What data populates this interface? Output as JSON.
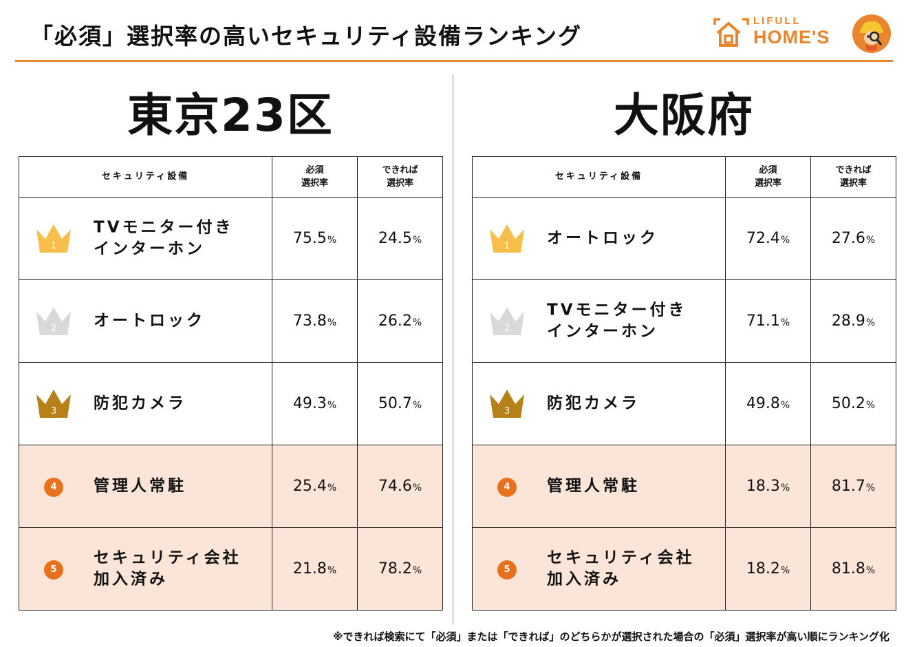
{
  "title": "「必須」選択率の高いセキュリティ設備ランキング",
  "logo": {
    "line1": "LIFULL",
    "line2": "HOME'S"
  },
  "footnote": "※できれば検索にて「必須」または「できれば」のどちらかが選択された場合の「必須」選択率が高い順にランキング化",
  "colors": {
    "accent": "#e8852d",
    "gold": "#f7bf4a",
    "silver": "#d9d9d9",
    "bronze": "#b78119",
    "rank_circle": "#e8711d",
    "highlight_row": "#fbe5d8"
  },
  "chart_data": [
    {
      "type": "table",
      "title": "東京23区",
      "headers": {
        "facility": "セキュリティ設備",
        "required": "必須\n選択率",
        "preferred": "できれば\n選択率"
      },
      "unit": "%",
      "rows": [
        {
          "rank": 1,
          "rank_label": "1",
          "facility": "TVモニター付き\nインターホン",
          "required": "75.5",
          "preferred": "24.5",
          "style": "crown-gold"
        },
        {
          "rank": 2,
          "rank_label": "2",
          "facility": "オートロック",
          "required": "73.8",
          "preferred": "26.2",
          "style": "crown-silver"
        },
        {
          "rank": 3,
          "rank_label": "3",
          "facility": "防犯カメラ",
          "required": "49.3",
          "preferred": "50.7",
          "style": "crown-bronze"
        },
        {
          "rank": 4,
          "rank_label": "4",
          "facility": "管理人常駐",
          "required": "25.4",
          "preferred": "74.6",
          "style": "circle"
        },
        {
          "rank": 5,
          "rank_label": "5",
          "facility": "セキュリティ会社\n加入済み",
          "required": "21.8",
          "preferred": "78.2",
          "style": "circle"
        }
      ]
    },
    {
      "type": "table",
      "title": "大阪府",
      "headers": {
        "facility": "セキュリティ設備",
        "required": "必須\n選択率",
        "preferred": "できれば\n選択率"
      },
      "unit": "%",
      "rows": [
        {
          "rank": 1,
          "rank_label": "1",
          "facility": "オートロック",
          "required": "72.4",
          "preferred": "27.6",
          "style": "crown-gold"
        },
        {
          "rank": 2,
          "rank_label": "2",
          "facility": "TVモニター付き\nインターホン",
          "required": "71.1",
          "preferred": "28.9",
          "style": "crown-silver"
        },
        {
          "rank": 3,
          "rank_label": "3",
          "facility": "防犯カメラ",
          "required": "49.8",
          "preferred": "50.2",
          "style": "crown-bronze"
        },
        {
          "rank": 4,
          "rank_label": "4",
          "facility": "管理人常駐",
          "required": "18.3",
          "preferred": "81.7",
          "style": "circle"
        },
        {
          "rank": 5,
          "rank_label": "5",
          "facility": "セキュリティ会社\n加入済み",
          "required": "18.2",
          "preferred": "81.8",
          "style": "circle"
        }
      ]
    }
  ]
}
